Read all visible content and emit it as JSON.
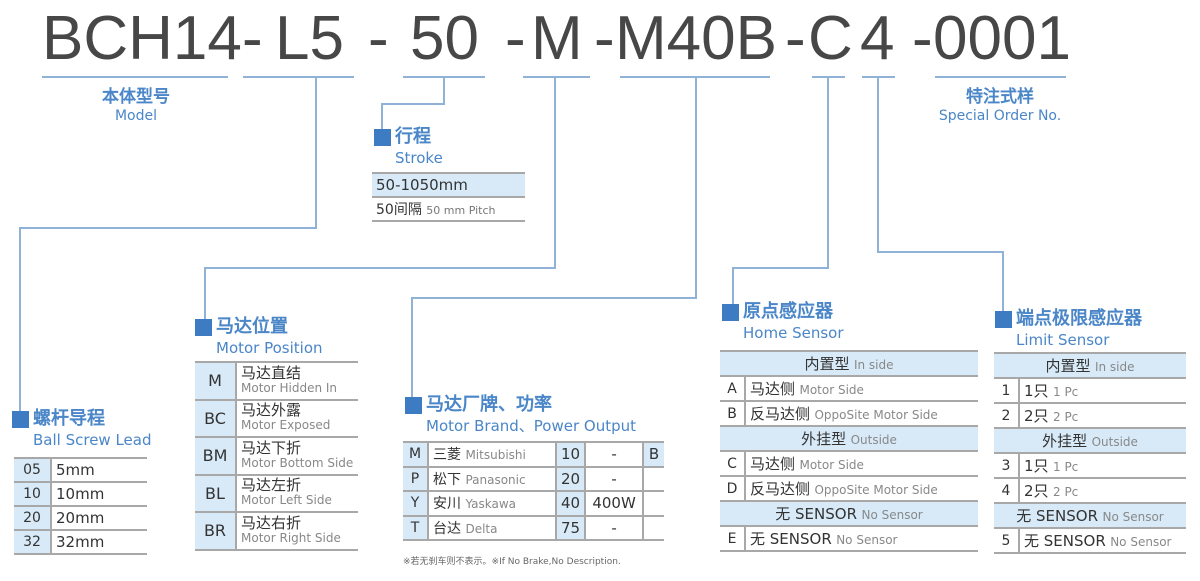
{
  "code": {
    "segments": [
      "BCH14",
      "-",
      "L5",
      "-",
      "50",
      "-",
      "M",
      "-",
      "M40B",
      "-",
      "C",
      "4",
      "-",
      "0001"
    ]
  },
  "model": {
    "cn": "本体型号",
    "en": "Model"
  },
  "special": {
    "cn": "特注式样",
    "en": "Special Order No."
  },
  "stroke": {
    "cn": "行程",
    "en": "Stroke",
    "range": "50-1050mm",
    "pitch_cn": "50间隔",
    "pitch_en": "50 mm Pitch"
  },
  "ball_screw": {
    "cn": "螺杆导程",
    "en": "Ball Screw Lead",
    "rows": [
      {
        "code": "05",
        "value": "5mm"
      },
      {
        "code": "10",
        "value": "10mm"
      },
      {
        "code": "20",
        "value": "20mm"
      },
      {
        "code": "32",
        "value": "32mm"
      }
    ]
  },
  "motor_position": {
    "cn": "马达位置",
    "en": "Motor Position",
    "rows": [
      {
        "code": "M",
        "cn": "马达直结",
        "en": "Motor Hidden In"
      },
      {
        "code": "BC",
        "cn": "马达外露",
        "en": "Motor Exposed"
      },
      {
        "code": "BM",
        "cn": "马达下折",
        "en": "Motor Bottom Side"
      },
      {
        "code": "BL",
        "cn": "马达左折",
        "en": "Motor Left Side"
      },
      {
        "code": "BR",
        "cn": "马达右折",
        "en": "Motor Right Side"
      }
    ]
  },
  "motor_brand": {
    "cn": "马达厂牌、功率",
    "en": "Motor Brand、Power Output",
    "brake": "B",
    "rows": [
      {
        "code": "M",
        "cn": "三菱",
        "en": "Mitsubishi",
        "num": "10",
        "power": "-"
      },
      {
        "code": "P",
        "cn": "松下",
        "en": "Panasonic",
        "num": "20",
        "power": "-"
      },
      {
        "code": "Y",
        "cn": "安川",
        "en": "Yaskawa",
        "num": "40",
        "power": "400W"
      },
      {
        "code": "T",
        "cn": "台达",
        "en": "Delta",
        "num": "75",
        "power": "-"
      }
    ],
    "footnote": "※若无刹车则不表示。※If No Brake,No Description."
  },
  "home_sensor": {
    "cn": "原点感应器",
    "en": "Home Sensor",
    "rows": [
      {
        "header": true,
        "cn": "内置型",
        "en": "In side"
      },
      {
        "code": "A",
        "cn": "马达侧",
        "en": "Motor Side"
      },
      {
        "code": "B",
        "cn": "反马达侧",
        "en": "OppoSite Motor Side"
      },
      {
        "header": true,
        "cn": "外挂型",
        "en": "Outside"
      },
      {
        "code": "C",
        "cn": "马达侧",
        "en": "Motor Side"
      },
      {
        "code": "D",
        "cn": "反马达侧",
        "en": "OppoSite Motor Side"
      },
      {
        "header": true,
        "cn": "无 SENSOR",
        "en": "No Sensor"
      },
      {
        "code": "E",
        "cn": "无 SENSOR",
        "en": "No Sensor"
      }
    ]
  },
  "limit_sensor": {
    "cn": "端点极限感应器",
    "en": "Limit Sensor",
    "rows": [
      {
        "header": true,
        "cn": "内置型",
        "en": "In side"
      },
      {
        "code": "1",
        "cn": "1只",
        "en": "1 Pc"
      },
      {
        "code": "2",
        "cn": "2只",
        "en": "2 Pc"
      },
      {
        "header": true,
        "cn": "外挂型",
        "en": "Outside"
      },
      {
        "code": "3",
        "cn": "1只",
        "en": "1 Pc"
      },
      {
        "code": "4",
        "cn": "2只",
        "en": "2 Pc"
      },
      {
        "header": true,
        "cn": "无 SENSOR",
        "en": "No Sensor"
      },
      {
        "code": "5",
        "cn": "无 SENSOR",
        "en": "No Sensor"
      }
    ]
  },
  "colors": {
    "accent": "#3d7cc2",
    "line": "#8fb2d6",
    "cell_bg": "#d8eaf8",
    "code_text": "#474747"
  }
}
